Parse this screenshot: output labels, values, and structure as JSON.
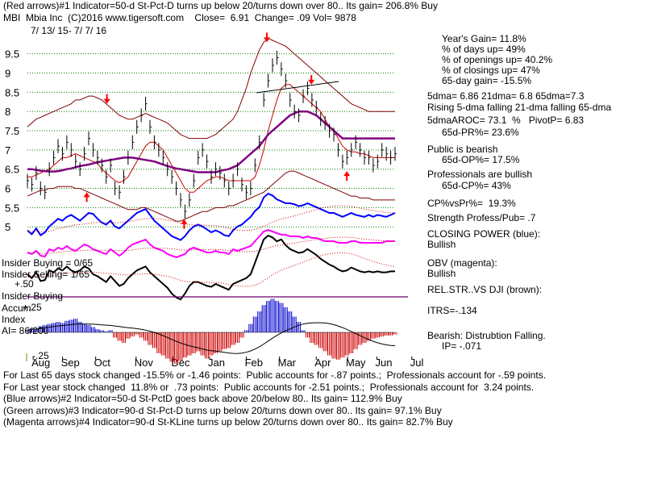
{
  "header": {
    "line1": "(Red arrows)#1 Indicator=50-d St-Pct-D turns up below 20/turns down over 80.. Its gain= 206.8% Buy",
    "line2": "MBI  Mbia Inc  (C)2016 www.tigersoft.com    Close=  6.91  Change= .09 Vol= 9878",
    "daterange": "7/ 13/ 15- 7/ 7/ 16"
  },
  "right_panel": [
    "Year's Gain= 11.8%",
    "% of days up= 49%",
    "% of openings up= 40.2%",
    "% of closings up= 47%",
    "65-day gain= -15.5%",
    "5dma= 6.86 21dma= 6.8 65dma=7.3",
    "Rising 5-dma falling 21-dma falling 65-dma",
    "5dmaAROC= 73.1  %   PivotP= 6.83",
    "65d-PR%= 23.6%",
    "Public is bearish",
    "65d-OP%= 17.5%",
    "Professionals are bullish",
    "65d-CP%= 43%",
    "CP%vsPr%=  19.3%",
    "Strength Profess/Pub= .7",
    "CLOSING POWER (blue):",
    "Bullish",
    "OBV (magenta):",
    "Bullish",
    "REL.STR..VS DJI (brown):",
    "ITRS=-.134",
    "Bearish: Distrubtion Falling.",
    "IP= -.071"
  ],
  "left_labels": {
    "insider_buying": "Insider Buying = 0/65",
    "insider_selling": "Insider Selling= 1/65",
    "plus50": "+.50",
    "insider_buying2": "Insider Buying",
    "accum": "Accum",
    "plus25": "+.25",
    "index": "Index",
    "ai": "AI= 86/200",
    "minus25": "-.25"
  },
  "bottom_lines": [
    "For Last 65 days stock changed -15.5% or -1.46 points:  Public accounts for -.87 points.;  Professionals account for -.59 points.",
    "For Last year stock changed  11.8% or  .73 points:  Public accounts for -2.51 points.;  Professionals account for  3.24 points.",
    "(Blue arrows)#2 Indicator=50-d St-PctD goes back above 20/below 80.. Its gain= 112.9% Buy",
    "(Green arrows)#3 Indicator=90-d St-Pct-D turns up below 20/turns down over 80.. Its gain= 97.1% Buy",
    "(Magenta arrows)#4 Indicator=90-d St-KLine turns up below 20/turns down over 80.. Its gain= 82.7% Buy"
  ],
  "chart_data": {
    "type": "line",
    "y_ticks": [
      9.5,
      9,
      8.5,
      8,
      7.5,
      7,
      6.5,
      6,
      5.5,
      5
    ],
    "x_months": [
      "Aug",
      "Sep",
      "Oct",
      "Nov",
      "Dec",
      "Jan",
      "Feb",
      "Mar",
      "Apr",
      "May",
      "Jun",
      "Jul"
    ],
    "ylim": [
      4.9,
      9.85
    ],
    "grid": true,
    "colors": {
      "price": "#000000",
      "ma21": "#cc0000",
      "ma65": "#800080",
      "bands": "#800000",
      "closing_power": "#0000ff",
      "obv": "#ff00ff",
      "rel_str": "#000000",
      "accum_pos": "#0000cc",
      "accum_neg": "#cc0000",
      "grid": "#008000",
      "arrow": "#ff0000"
    },
    "price": [
      6.2,
      6.1,
      6.4,
      6.0,
      5.9,
      6.5,
      6.8,
      7.1,
      6.9,
      7.2,
      7.0,
      6.7,
      6.5,
      6.9,
      7.3,
      7.0,
      6.8,
      6.6,
      6.3,
      6.6,
      6.0,
      5.9,
      6.3,
      6.8,
      7.2,
      7.6,
      7.9,
      8.2,
      7.6,
      7.2,
      7.0,
      6.8,
      6.5,
      6.3,
      6.0,
      5.7,
      5.4,
      5.7,
      6.2,
      6.8,
      7.0,
      6.7,
      6.3,
      6.5,
      6.4,
      6.2,
      6.0,
      6.2,
      6.5,
      6.1,
      5.9,
      6.0,
      6.6,
      7.2,
      8.3,
      8.8,
      9.2,
      9.4,
      9.1,
      8.8,
      8.3,
      8.0,
      7.9,
      8.4,
      8.6,
      8.3,
      8.1,
      7.8,
      7.7,
      7.5,
      7.4,
      7.0,
      6.7,
      6.8,
      7.0,
      7.2,
      7.0,
      6.8,
      6.8,
      6.6,
      6.7,
      7.0,
      6.9,
      6.8,
      6.9
    ],
    "ma21": [
      6.3,
      6.3,
      6.35,
      6.4,
      6.45,
      6.5,
      6.6,
      6.7,
      6.8,
      6.8,
      6.85,
      6.9,
      6.85,
      6.8,
      6.75,
      6.7,
      6.65,
      6.5,
      6.4,
      6.3,
      6.2,
      6.15,
      6.2,
      6.3,
      6.5,
      6.7,
      6.9,
      7.1,
      7.2,
      7.2,
      7.1,
      7.0,
      6.8,
      6.6,
      6.4,
      6.2,
      6.0,
      5.9,
      5.9,
      6.0,
      6.1,
      6.2,
      6.25,
      6.3,
      6.3,
      6.25,
      6.2,
      6.2,
      6.2,
      6.2,
      6.2,
      6.2,
      6.3,
      6.6,
      7.0,
      7.5,
      7.9,
      8.3,
      8.6,
      8.7,
      8.7,
      8.6,
      8.5,
      8.4,
      8.3,
      8.2,
      8.1,
      8.0,
      7.8,
      7.6,
      7.5,
      7.3,
      7.1,
      7.0,
      6.95,
      6.95,
      6.9,
      6.9,
      6.85,
      6.8,
      6.8,
      6.8,
      6.8,
      6.8,
      6.8
    ],
    "ma65": [
      6.5,
      6.5,
      6.48,
      6.46,
      6.45,
      6.44,
      6.44,
      6.45,
      6.47,
      6.5,
      6.52,
      6.55,
      6.58,
      6.6,
      6.62,
      6.65,
      6.68,
      6.7,
      6.72,
      6.74,
      6.76,
      6.78,
      6.8,
      6.8,
      6.8,
      6.78,
      6.76,
      6.74,
      6.72,
      6.7,
      6.66,
      6.62,
      6.58,
      6.55,
      6.52,
      6.5,
      6.48,
      6.46,
      6.44,
      6.42,
      6.42,
      6.42,
      6.42,
      6.42,
      6.45,
      6.48,
      6.5,
      6.55,
      6.6,
      6.7,
      6.8,
      6.9,
      7.0,
      7.1,
      7.25,
      7.4,
      7.5,
      7.6,
      7.7,
      7.8,
      7.9,
      7.95,
      8.0,
      8.0,
      8.0,
      7.95,
      7.9,
      7.8,
      7.7,
      7.6,
      7.5,
      7.4,
      7.3,
      7.3,
      7.3,
      7.3,
      7.3,
      7.3,
      7.3,
      7.3,
      7.3,
      7.3,
      7.3,
      7.3,
      7.3
    ],
    "band_upper": [
      7.6,
      7.7,
      7.8,
      7.85,
      7.9,
      7.95,
      8.0,
      8.05,
      8.1,
      8.15,
      8.2,
      8.3,
      8.3,
      8.35,
      8.4,
      8.4,
      8.35,
      8.3,
      8.2,
      8.1,
      8.0,
      7.9,
      7.85,
      7.8,
      7.8,
      7.85,
      7.9,
      7.95,
      7.9,
      7.85,
      7.8,
      7.75,
      7.7,
      7.6,
      7.5,
      7.4,
      7.35,
      7.3,
      7.3,
      7.3,
      7.3,
      7.3,
      7.35,
      7.4,
      7.5,
      7.6,
      7.7,
      7.8,
      8.0,
      8.3,
      8.6,
      9.0,
      9.3,
      9.6,
      9.8,
      9.9,
      9.85,
      9.8,
      9.75,
      9.7,
      9.6,
      9.5,
      9.4,
      9.3,
      9.2,
      9.1,
      9.0,
      8.9,
      8.8,
      8.7,
      8.6,
      8.5,
      8.4,
      8.3,
      8.2,
      8.15,
      8.1,
      8.05,
      8.0,
      8.0,
      8.0,
      8.0,
      8.0,
      8.0,
      8.0
    ],
    "band_lower": [
      5.8,
      5.85,
      5.9,
      5.95,
      5.95,
      6.0,
      6.0,
      6.05,
      6.05,
      6.05,
      6.05,
      6.0,
      6.0,
      5.95,
      5.9,
      5.85,
      5.8,
      5.75,
      5.7,
      5.65,
      5.6,
      5.55,
      5.5,
      5.45,
      5.45,
      5.45,
      5.5,
      5.5,
      5.45,
      5.4,
      5.35,
      5.3,
      5.25,
      5.2,
      5.15,
      5.15,
      5.2,
      5.25,
      5.3,
      5.35,
      5.4,
      5.4,
      5.45,
      5.5,
      5.5,
      5.5,
      5.55,
      5.55,
      5.6,
      5.65,
      5.7,
      5.75,
      5.8,
      5.85,
      5.9,
      6.0,
      6.1,
      6.2,
      6.3,
      6.4,
      6.45,
      6.45,
      6.4,
      6.35,
      6.3,
      6.25,
      6.2,
      6.15,
      6.1,
      6.05,
      6.0,
      5.95,
      5.9,
      5.85,
      5.8,
      5.8,
      5.75,
      5.75,
      5.75,
      5.7,
      5.7,
      5.7,
      5.7,
      5.7,
      5.7
    ],
    "closing_power": [
      52,
      48,
      54,
      47,
      50,
      56,
      60,
      64,
      62,
      66,
      68,
      65,
      62,
      66,
      70,
      69,
      64,
      60,
      58,
      62,
      56,
      54,
      58,
      62,
      66,
      70,
      72,
      74,
      68,
      62,
      58,
      54,
      50,
      46,
      44,
      42,
      46,
      52,
      56,
      58,
      56,
      53,
      50,
      52,
      50,
      47,
      46,
      52,
      56,
      58,
      62,
      66,
      72,
      76,
      86,
      90,
      88,
      84,
      82,
      80,
      80,
      79,
      77,
      78,
      80,
      78,
      76,
      74,
      72,
      70,
      70,
      68,
      66,
      68,
      70,
      68,
      67,
      66,
      68,
      66,
      68,
      67,
      66,
      68,
      70
    ],
    "obv": [
      30,
      28,
      32,
      26,
      25,
      34,
      32,
      36,
      34,
      38,
      34,
      32,
      36,
      40,
      38,
      34,
      32,
      30,
      28,
      34,
      30,
      26,
      30,
      36,
      40,
      42,
      44,
      46,
      40,
      36,
      34,
      32,
      28,
      26,
      24,
      26,
      28,
      34,
      36,
      34,
      32,
      30,
      30,
      32,
      30,
      30,
      28,
      34,
      32,
      34,
      36,
      38,
      44,
      50,
      56,
      58,
      56,
      54,
      52,
      52,
      50,
      50,
      50,
      48,
      50,
      48,
      48,
      46,
      44,
      44,
      44,
      42,
      42,
      42,
      44,
      44,
      42,
      42,
      42,
      42,
      42,
      42,
      44,
      44,
      44
    ],
    "rel_str": [
      40,
      36,
      42,
      33,
      34,
      44,
      42,
      46,
      44,
      48,
      44,
      42,
      44,
      48,
      46,
      40,
      38,
      35,
      32,
      38,
      33,
      28,
      30,
      36,
      40,
      44,
      46,
      48,
      42,
      38,
      34,
      30,
      26,
      20,
      16,
      14,
      20,
      28,
      32,
      32,
      30,
      28,
      27,
      30,
      28,
      26,
      24,
      30,
      32,
      34,
      36,
      40,
      52,
      64,
      76,
      80,
      78,
      74,
      76,
      70,
      66,
      64,
      62,
      63,
      66,
      63,
      60,
      56,
      53,
      50,
      48,
      45,
      43,
      44,
      47,
      45,
      43,
      42,
      43,
      42,
      43,
      42,
      42,
      43,
      43
    ],
    "accum": [
      0.02,
      0.04,
      0.03,
      0.06,
      0.07,
      0.08,
      0.09,
      0.1,
      0.09,
      0.11,
      0.12,
      0.13,
      0.1,
      0.08,
      0.07,
      0.05,
      0.03,
      0.02,
      0.01,
      0.02,
      -0.05,
      -0.08,
      -0.1,
      -0.06,
      -0.04,
      -0.02,
      -0.05,
      -0.08,
      -0.12,
      -0.15,
      -0.2,
      -0.22,
      -0.25,
      -0.28,
      -0.3,
      -0.27,
      -0.24,
      -0.22,
      -0.2,
      -0.18,
      -0.22,
      -0.25,
      -0.22,
      -0.2,
      -0.18,
      -0.16,
      -0.15,
      -0.12,
      -0.1,
      -0.05,
      0.02,
      0.08,
      0.15,
      0.2,
      0.26,
      0.3,
      0.32,
      0.3,
      0.28,
      0.24,
      0.2,
      0.15,
      0.1,
      0.02,
      -0.05,
      -0.1,
      -0.12,
      -0.15,
      -0.18,
      -0.22,
      -0.25,
      -0.26,
      -0.24,
      -0.22,
      -0.2,
      -0.16,
      -0.12,
      -0.1,
      -0.08,
      -0.06,
      -0.05,
      -0.04,
      -0.03,
      -0.03,
      -0.02
    ],
    "arrows": [
      {
        "dir": "up",
        "x": "Sep",
        "y": 5.9
      },
      {
        "dir": "down",
        "x": "Oct",
        "y": 8.2
      },
      {
        "dir": "up",
        "x": "Dec",
        "y": 5.2
      },
      {
        "dir": "down",
        "x": "Mar",
        "y": 9.8
      },
      {
        "dir": "down",
        "x": "Apr",
        "y": 8.7
      },
      {
        "dir": "up",
        "x": "May",
        "y": 6.45
      }
    ]
  }
}
